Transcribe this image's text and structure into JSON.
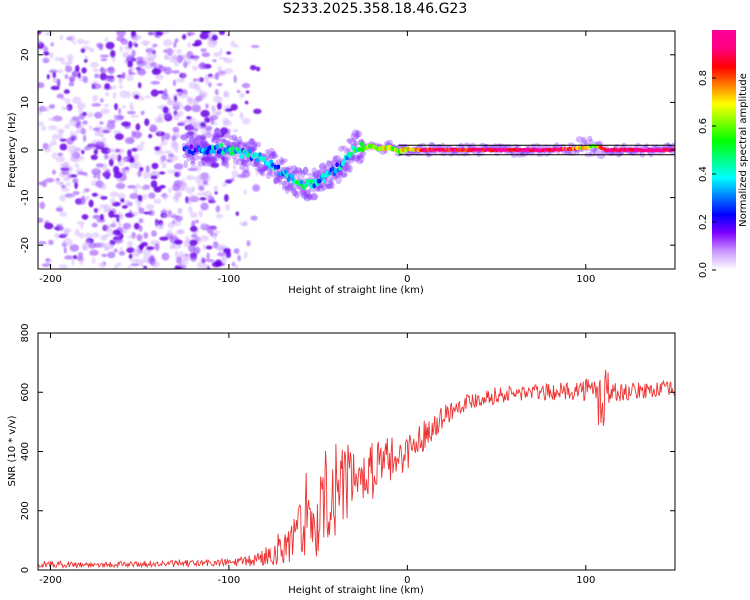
{
  "page": {
    "title": "S233.2025.358.18.46.G23"
  },
  "chart_data": [
    {
      "id": "spectrogram",
      "type": "heatmap",
      "title": "S233.2025.358.18.46.G23",
      "xlabel": "Height of straight line (km)",
      "ylabel": "Frequency (Hz)",
      "xlim": [
        -207,
        150
      ],
      "ylim": [
        -25,
        25
      ],
      "x_ticks": [
        -200,
        -100,
        0,
        100
      ],
      "x_tick_labels": [
        "-200",
        "-100",
        "0",
        "100"
      ],
      "y_ticks": [
        -20,
        -10,
        0,
        10,
        20
      ],
      "y_tick_labels": [
        "-20",
        "-10",
        "0",
        "10",
        "20"
      ],
      "guide_lines_hz": [
        1.0,
        -1.0
      ],
      "ridge": {
        "x": [
          -125,
          -115,
          -105,
          -95,
          -85,
          -78,
          -72,
          -66,
          -60,
          -55,
          -50,
          -45,
          -40,
          -35,
          -30,
          -27,
          -24,
          -20,
          -15,
          -10,
          -5,
          0,
          10,
          20,
          40,
          60,
          80,
          100,
          104,
          108,
          112,
          120,
          150
        ],
        "freq": [
          0.2,
          -0.1,
          0.3,
          -0.6,
          -1.2,
          -2.5,
          -4.2,
          -6.0,
          -7.0,
          -7.2,
          -6.5,
          -5.5,
          -4.0,
          -2.0,
          0.2,
          0.6,
          0.5,
          0.8,
          0.2,
          0.5,
          -0.3,
          0.1,
          0.0,
          0.0,
          0.0,
          0.0,
          0.0,
          0.4,
          1.0,
          0.5,
          0.0,
          0.0,
          0.0
        ],
        "amplitude": [
          0.15,
          0.3,
          0.35,
          0.4,
          0.35,
          0.4,
          0.3,
          0.4,
          0.45,
          0.4,
          0.35,
          0.35,
          0.3,
          0.4,
          0.45,
          0.5,
          0.6,
          0.65,
          0.6,
          0.65,
          0.6,
          0.7,
          0.85,
          0.9,
          0.9,
          0.95,
          0.95,
          0.7,
          0.55,
          0.75,
          0.95,
          0.97,
          0.97
        ]
      },
      "noise_region_km": [
        -207,
        -80
      ],
      "colorbar": {
        "label": "Normalized spectral amplitude",
        "range": [
          0.0,
          1.0
        ],
        "ticks": [
          0.0,
          0.2,
          0.4,
          0.6,
          0.8
        ],
        "tick_labels": [
          "0.0",
          "0.2",
          "0.4",
          "0.6",
          "0.8"
        ],
        "colormap": [
          "#ffffff",
          "#cc99ff",
          "#7f00ff",
          "#0000ff",
          "#0080ff",
          "#00ffff",
          "#00ff80",
          "#00ff00",
          "#80ff00",
          "#ffff00",
          "#ff8000",
          "#ff0000",
          "#ff0080",
          "#ff0099"
        ]
      }
    },
    {
      "id": "snr",
      "type": "line",
      "xlabel": "Height of straight line (km)",
      "ylabel": "SNR (10 * v/v)",
      "xlim": [
        -207,
        150
      ],
      "ylim": [
        0,
        800
      ],
      "x_ticks": [
        -200,
        -100,
        0,
        100
      ],
      "x_tick_labels": [
        "-200",
        "-100",
        "0",
        "100"
      ],
      "y_ticks": [
        0,
        200,
        400,
        600,
        800
      ],
      "y_tick_labels": [
        "0",
        "200",
        "400",
        "600",
        "800"
      ],
      "line_color": "#ee3333",
      "series": [
        {
          "name": "SNR",
          "x": [
            -207,
            -180,
            -150,
            -120,
            -100,
            -90,
            -85,
            -80,
            -75,
            -70,
            -65,
            -60,
            -55,
            -50,
            -45,
            -40,
            -35,
            -30,
            -25,
            -20,
            -15,
            -10,
            -5,
            0,
            5,
            10,
            15,
            20,
            25,
            30,
            40,
            50,
            60,
            70,
            80,
            90,
            100,
            105,
            108,
            110,
            112,
            115,
            120,
            130,
            140,
            150
          ],
          "y": [
            20,
            18,
            20,
            22,
            25,
            28,
            35,
            45,
            60,
            80,
            100,
            130,
            160,
            190,
            230,
            260,
            280,
            300,
            310,
            330,
            350,
            370,
            380,
            400,
            430,
            460,
            490,
            520,
            540,
            560,
            580,
            590,
            595,
            600,
            600,
            605,
            610,
            600,
            560,
            600,
            620,
            600,
            600,
            605,
            610,
            610
          ],
          "noise_amp": [
            12,
            10,
            10,
            12,
            14,
            18,
            25,
            35,
            45,
            60,
            80,
            110,
            130,
            150,
            150,
            140,
            130,
            120,
            110,
            100,
            90,
            80,
            70,
            60,
            55,
            50,
            45,
            40,
            35,
            30,
            30,
            28,
            28,
            28,
            28,
            30,
            40,
            60,
            120,
            150,
            80,
            40,
            30,
            28,
            28,
            28
          ]
        }
      ]
    }
  ]
}
